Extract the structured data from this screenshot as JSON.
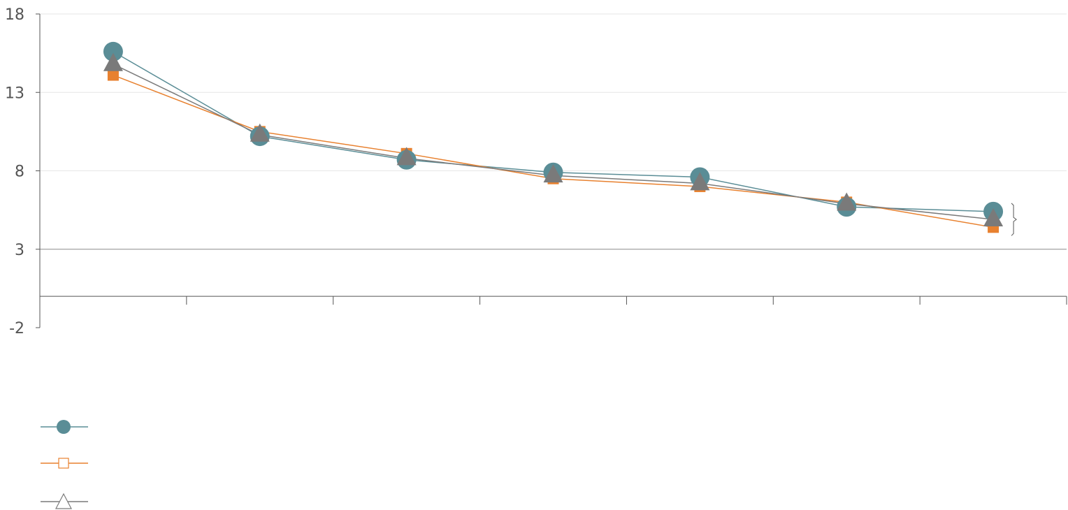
{
  "chart_data": {
    "type": "line",
    "ylim": [
      -2,
      18
    ],
    "yticks": [
      18,
      13,
      8,
      3,
      -2
    ],
    "x_count": 7,
    "grid": true,
    "legend_position": "bottom-left",
    "series": [
      {
        "marker": "circle",
        "color": "#5a8d96",
        "values": [
          15.6,
          10.2,
          8.7,
          7.9,
          7.6,
          5.7,
          5.4
        ]
      },
      {
        "marker": "square",
        "color": "#e8812f",
        "values": [
          14.1,
          10.5,
          9.1,
          7.5,
          7.0,
          6.0,
          4.4
        ]
      },
      {
        "marker": "triangle",
        "color": "#7a7a7a",
        "values": [
          14.8,
          10.3,
          8.8,
          7.7,
          7.2,
          5.9,
          4.9
        ]
      }
    ],
    "bracket": {
      "x_index": 6,
      "from": 4.4,
      "to": 5.4
    }
  }
}
